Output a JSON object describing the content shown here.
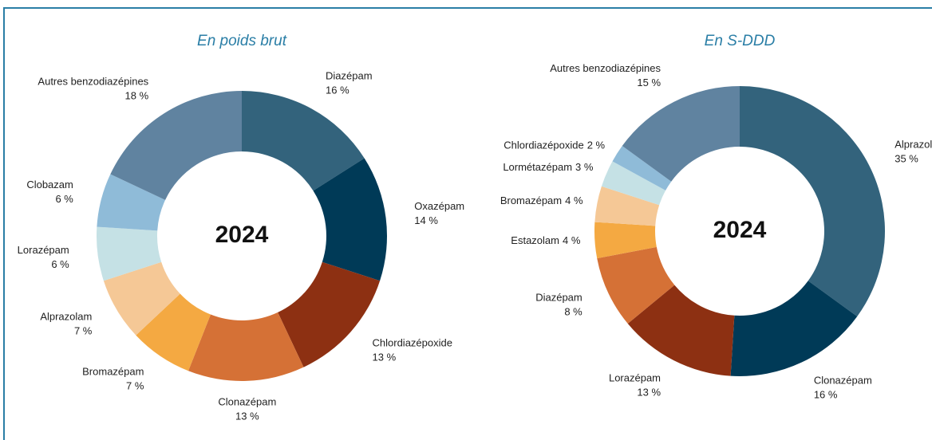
{
  "chart_data": [
    {
      "type": "donut",
      "title": "En poids brut",
      "center_label": "2024",
      "categories": [
        "Diazépam",
        "Oxazépam",
        "Chlordiazépoxide",
        "Clonazépam",
        "Bromazépam",
        "Alprazolam",
        "Lorazépam",
        "Clobazam",
        "Autres benzodiazépines"
      ],
      "values": [
        16,
        14,
        13,
        13,
        7,
        7,
        6,
        6,
        18
      ],
      "value_labels": [
        "16 %",
        "14 %",
        "13 %",
        "13 %",
        "7 %",
        "7 %",
        "6 %",
        "6 %",
        "18 %"
      ],
      "colors": [
        "#33637c",
        "#003a57",
        "#8d3012",
        "#d57136",
        "#f4a942",
        "#f5c896",
        "#c5e1e5",
        "#8fbbd8",
        "#6083a0"
      ]
    },
    {
      "type": "donut",
      "title": "En S-DDD",
      "center_label": "2024",
      "categories": [
        "Alprazolam",
        "Clonazépam",
        "Lorazépam",
        "Diazépam",
        "Estazolam",
        "Bromazépam",
        "Lormétazépam",
        "Chlordiazépoxide",
        "Autres benzodiazépines"
      ],
      "values": [
        35,
        16,
        13,
        8,
        4,
        4,
        3,
        2,
        15
      ],
      "value_labels": [
        "35 %",
        "16 %",
        "13 %",
        "8 %",
        "4 %",
        "4 %",
        "3 %",
        "2 %",
        "15 %"
      ],
      "colors": [
        "#33637c",
        "#003a57",
        "#8d3012",
        "#d57136",
        "#f4a942",
        "#f5c896",
        "#c5e1e5",
        "#8fbbd8",
        "#6083a0"
      ]
    }
  ]
}
